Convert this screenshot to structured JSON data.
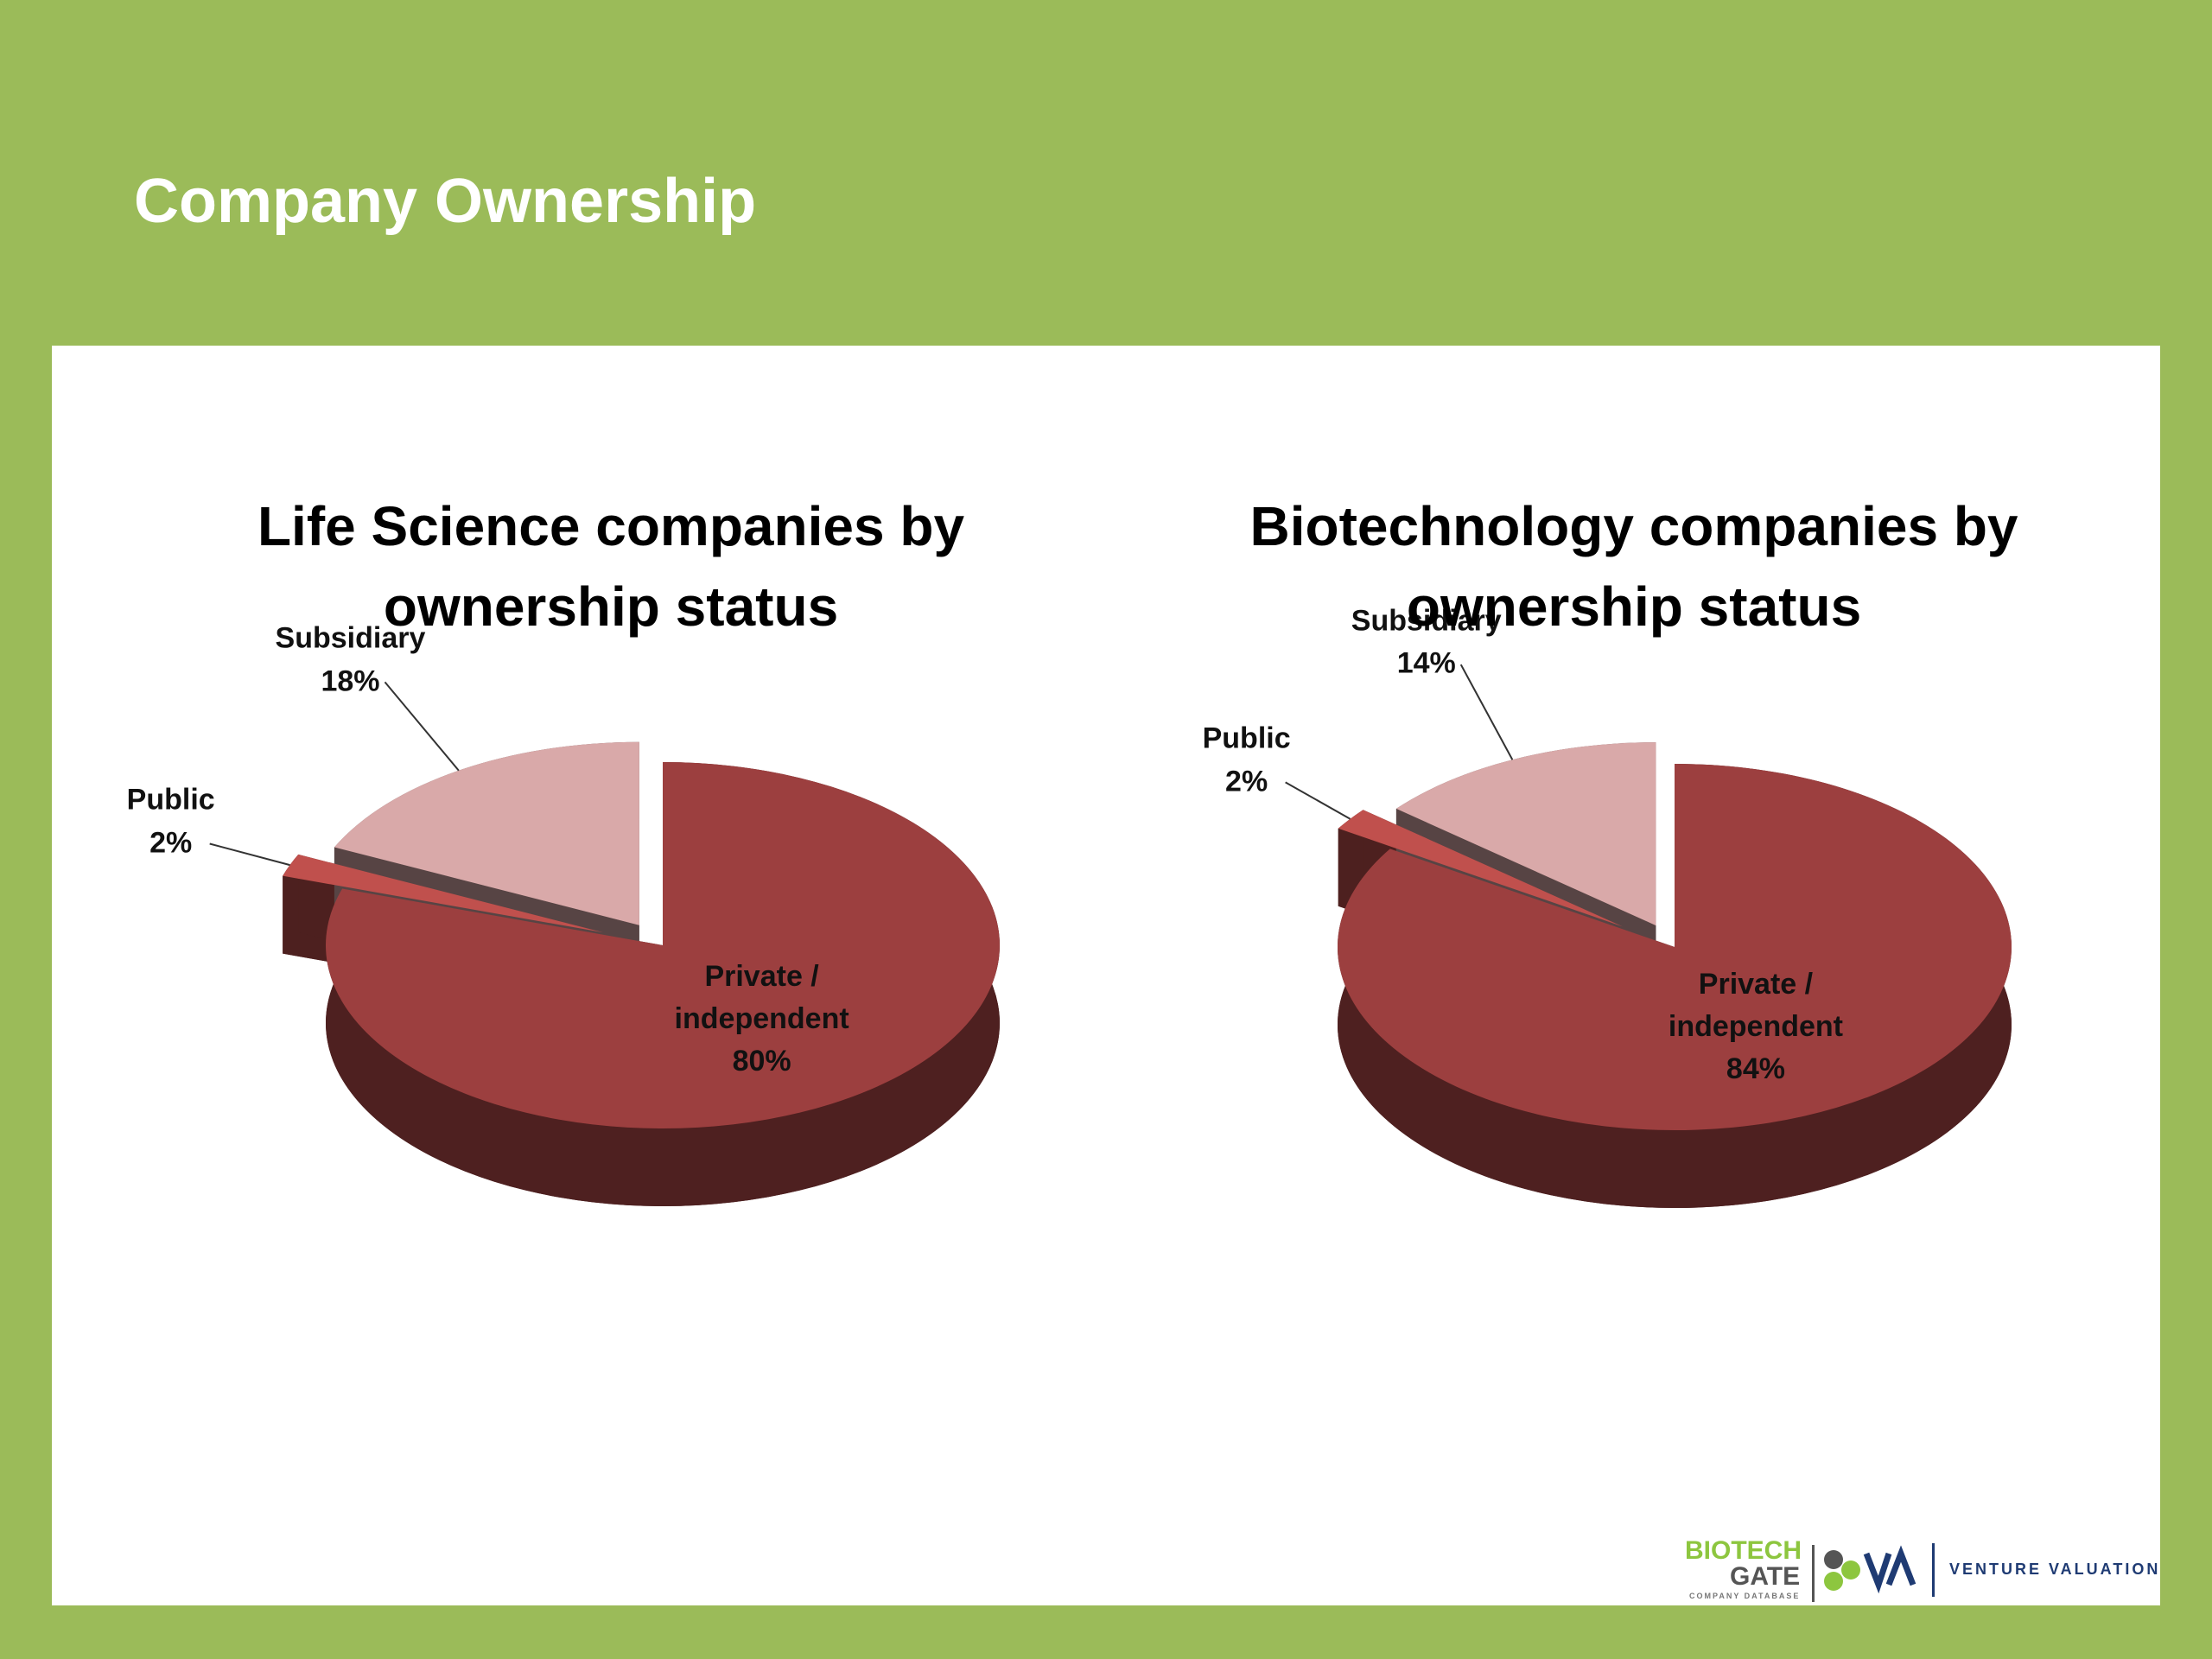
{
  "page": {
    "title": "Company Ownership"
  },
  "logo": {
    "brand_top": "BIOTECH",
    "brand_bottom": "GATE",
    "brand_sub": "COMPANY DATABASE",
    "partner": "VENTURE VALUATION"
  },
  "chart_data": [
    {
      "type": "pie",
      "title": "Life Science companies by ownership status",
      "categories": [
        "Private / independent",
        "Public",
        "Subsidiary"
      ],
      "values": [
        80,
        2,
        18
      ],
      "value_labels": [
        "80%",
        "2%",
        "18%"
      ],
      "colors": [
        "#9c3f3f",
        "#c0504d",
        "#d9a9a9"
      ]
    },
    {
      "type": "pie",
      "title": "Biotechnology companies by ownership status",
      "categories": [
        "Private / independent",
        "Public",
        "Subsidiary"
      ],
      "values": [
        84,
        2,
        14
      ],
      "value_labels": [
        "84%",
        "2%",
        "14%"
      ],
      "colors": [
        "#9c3f3f",
        "#c0504d",
        "#d9a9a9"
      ]
    }
  ]
}
